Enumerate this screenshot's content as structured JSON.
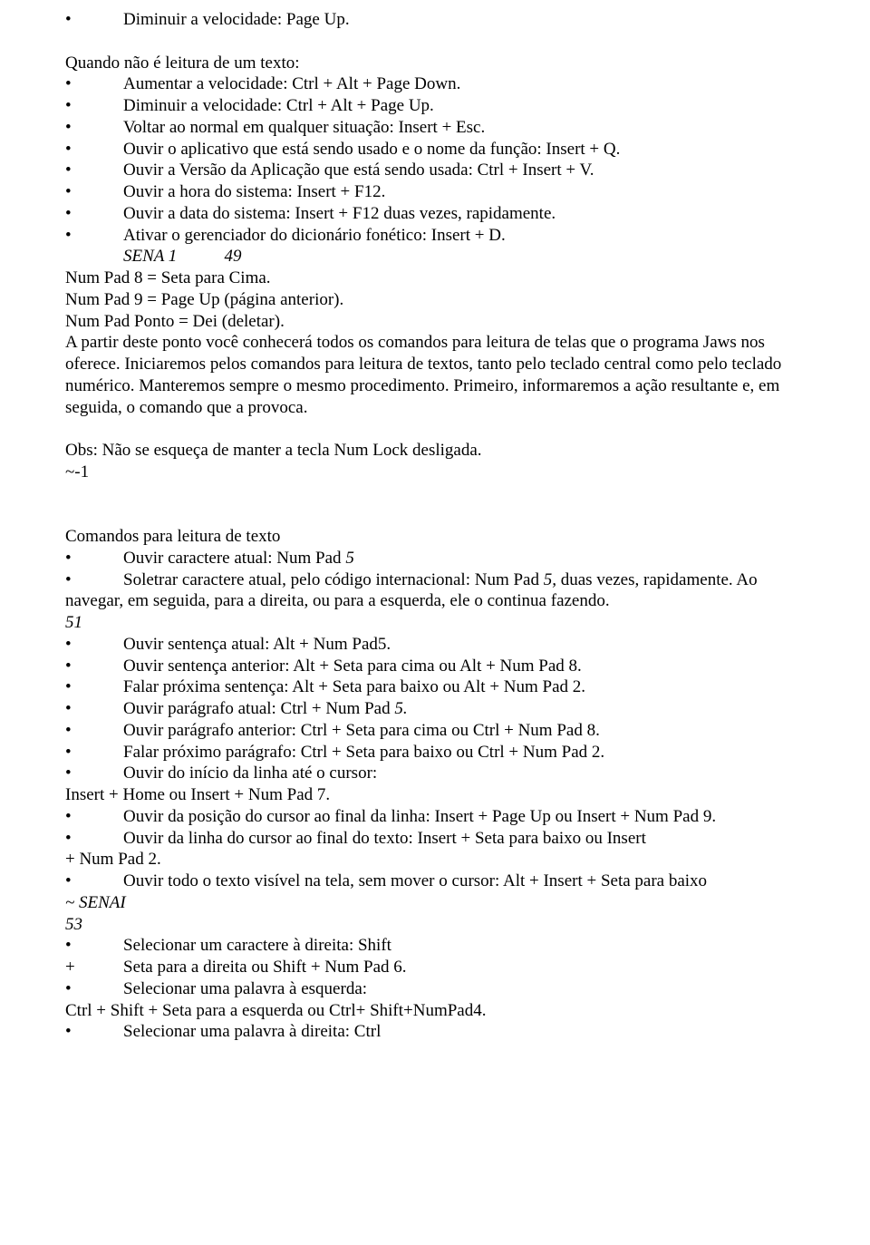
{
  "lines": [
    {
      "type": "bullet",
      "text": "Diminuir a velocidade: Page Up."
    },
    {
      "type": "blank"
    },
    {
      "type": "plain",
      "text": "Quando não é leitura de um texto:"
    },
    {
      "type": "bullet",
      "text": "Aumentar a velocidade: Ctrl + Alt + Page Down."
    },
    {
      "type": "bullet",
      "text": "Diminuir a velocidade: Ctrl + Alt + Page Up."
    },
    {
      "type": "bullet",
      "text": "Voltar ao normal em qualquer situação: Insert + Esc."
    },
    {
      "type": "bullet",
      "text": "Ouvir o aplicativo que está sendo usado e o nome da função: Insert + Q."
    },
    {
      "type": "bullet",
      "text": "Ouvir a Versão da Aplicação que está sendo usada: Ctrl + Insert + V."
    },
    {
      "type": "bullet",
      "text": "Ouvir a hora do sistema: Insert + F12."
    },
    {
      "type": "bullet",
      "text": "Ouvir a data do sistema: Insert + F12 duas vezes, rapidamente."
    },
    {
      "type": "bullet",
      "text": "Ativar o gerenciador do dicionário fonético: Insert + D."
    },
    {
      "type": "sena",
      "text": "SENA 1           49",
      "italic": true
    },
    {
      "type": "plain",
      "text": "Num Pad 8 = Seta para Cima."
    },
    {
      "type": "plain",
      "text": "Num Pad 9 = Page Up (página anterior)."
    },
    {
      "type": "plain",
      "text": "Num Pad Ponto = Dei (deletar)."
    },
    {
      "type": "plain",
      "text": "A partir deste ponto você conhecerá todos os comandos para leitura de telas que o programa Jaws nos oferece. Iniciaremos pelos comandos para leitura de textos, tanto pelo teclado central como pelo teclado numérico. Manteremos sempre o mesmo procedimento. Primeiro, informaremos a ação resultante e, em seguida, o comando que a provoca."
    },
    {
      "type": "blank"
    },
    {
      "type": "plain",
      "text": "Obs: Não se esqueça de manter a tecla Num Lock desligada."
    },
    {
      "type": "plain",
      "text": "~-1"
    },
    {
      "type": "blank"
    },
    {
      "type": "blank"
    },
    {
      "type": "plain",
      "text": "Comandos para leitura de texto"
    },
    {
      "type": "bullet",
      "text": "Ouvir caractere atual: Num Pad 5",
      "partialItalic": {
        "prefix": "Ouvir caractere atual: Num Pad ",
        "italic": "5",
        "suffix": ""
      }
    },
    {
      "type": "bullet",
      "text": "",
      "partialItalic": {
        "prefix": "Soletrar caractere atual, pelo código internacional: Num Pad ",
        "italic": "5,",
        "suffix": " duas vezes, rapidamente. Ao"
      }
    },
    {
      "type": "plain",
      "text": "navegar, em seguida, para a direita, ou para a esquerda, ele o continua fazendo."
    },
    {
      "type": "plain",
      "text": "51",
      "italic": true
    },
    {
      "type": "bullet",
      "text": "Ouvir sentença atual: Alt + Num Pad5."
    },
    {
      "type": "bullet",
      "text": "Ouvir sentença anterior: Alt + Seta para cima ou Alt + Num Pad 8."
    },
    {
      "type": "bullet",
      "text": "Falar próxima sentença: Alt + Seta para baixo ou Alt + Num Pad 2."
    },
    {
      "type": "bullet",
      "text": "",
      "partialItalic": {
        "prefix": "Ouvir parágrafo atual: Ctrl + Num Pad ",
        "italic": "5.",
        "suffix": ""
      }
    },
    {
      "type": "bullet",
      "text": "Ouvir parágrafo anterior: Ctrl + Seta para cima ou Ctrl + Num Pad 8."
    },
    {
      "type": "bullet",
      "text": "Falar próximo parágrafo: Ctrl + Seta para baixo ou Ctrl + Num Pad 2."
    },
    {
      "type": "bullet",
      "text": "Ouvir do início da linha até o cursor:"
    },
    {
      "type": "plain",
      "text": "Insert + Home ou Insert + Num Pad 7."
    },
    {
      "type": "bullet",
      "text": "Ouvir da posição do cursor ao final da linha: Insert + Page Up ou Insert + Num Pad 9."
    },
    {
      "type": "bullet",
      "text": "Ouvir da linha do cursor ao final do texto: Insert + Seta para baixo ou Insert"
    },
    {
      "type": "plain",
      "text": "+ Num Pad 2."
    },
    {
      "type": "bullet",
      "text": "Ouvir todo o texto visível na tela, sem mover o cursor: Alt + Insert + Seta para baixo"
    },
    {
      "type": "plain",
      "text": "~ SENAI",
      "italic": true
    },
    {
      "type": "plain",
      "text": "53",
      "italic": true
    },
    {
      "type": "bullet",
      "text": "Selecionar um caractere à direita: Shift"
    },
    {
      "type": "plus",
      "text": "Seta para a direita ou Shift + Num Pad 6."
    },
    {
      "type": "bullet",
      "text": "Selecionar uma palavra à esquerda:"
    },
    {
      "type": "plain",
      "text": "Ctrl + Shift + Seta para a esquerda ou Ctrl+ Shift+NumPad4."
    },
    {
      "type": "bullet",
      "text": "Selecionar uma palavra à direita: Ctrl"
    }
  ],
  "bullet_char": "•",
  "plus_char": "+"
}
